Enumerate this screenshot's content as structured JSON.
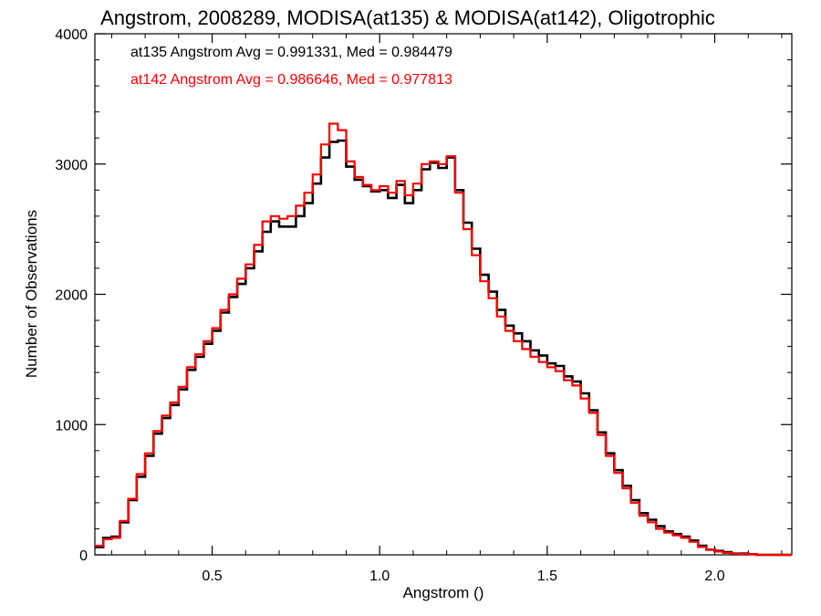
{
  "chart_data": {
    "type": "line",
    "title": "Angstrom, 2008289, MODISA(at135) & MODISA(at142), Oligotrophic",
    "xlabel": "Angstrom ()",
    "ylabel": "Number of Observations",
    "xlim": [
      0.15,
      2.23
    ],
    "ylim": [
      0,
      4000
    ],
    "x_ticks": [
      {
        "value": 0.5,
        "label": "0.5"
      },
      {
        "value": 1.0,
        "label": "1.0"
      },
      {
        "value": 1.5,
        "label": "1.5"
      },
      {
        "value": 2.0,
        "label": "2.0"
      }
    ],
    "y_ticks": [
      {
        "value": 0,
        "label": "0"
      },
      {
        "value": 1000,
        "label": "1000"
      },
      {
        "value": 2000,
        "label": "2000"
      },
      {
        "value": 3000,
        "label": "3000"
      },
      {
        "value": 4000,
        "label": "4000"
      }
    ],
    "legend": [
      {
        "text": "at135 Angstrom Avg = 0.991331, Med = 0.984479",
        "color": "#000000"
      },
      {
        "text": "at142 Angstrom Avg = 0.986646, Med = 0.977813",
        "color": "#ff0000"
      }
    ],
    "grid": false,
    "legend_position": "top-left",
    "step": true,
    "series": [
      {
        "color": "#000000",
        "x": [
          0.15,
          0.175,
          0.2,
          0.225,
          0.25,
          0.275,
          0.3,
          0.325,
          0.35,
          0.375,
          0.4,
          0.425,
          0.45,
          0.475,
          0.5,
          0.525,
          0.55,
          0.575,
          0.6,
          0.625,
          0.65,
          0.675,
          0.7,
          0.725,
          0.75,
          0.775,
          0.8,
          0.825,
          0.85,
          0.875,
          0.9,
          0.925,
          0.95,
          0.975,
          1.0,
          1.025,
          1.05,
          1.075,
          1.1,
          1.125,
          1.15,
          1.175,
          1.2,
          1.225,
          1.25,
          1.275,
          1.3,
          1.325,
          1.35,
          1.375,
          1.4,
          1.425,
          1.45,
          1.475,
          1.5,
          1.525,
          1.55,
          1.575,
          1.6,
          1.625,
          1.65,
          1.675,
          1.7,
          1.725,
          1.75,
          1.775,
          1.8,
          1.825,
          1.85,
          1.875,
          1.9,
          1.925,
          1.95,
          1.975,
          2.0,
          2.025,
          2.05,
          2.075,
          2.1,
          2.125,
          2.15,
          2.175,
          2.2,
          2.23
        ],
        "y": [
          60,
          130,
          140,
          250,
          420,
          600,
          760,
          930,
          1050,
          1150,
          1270,
          1420,
          1520,
          1620,
          1720,
          1860,
          1980,
          2080,
          2200,
          2330,
          2480,
          2560,
          2520,
          2520,
          2600,
          2700,
          2850,
          3050,
          3170,
          3180,
          2980,
          2880,
          2830,
          2790,
          2800,
          2740,
          2840,
          2700,
          2800,
          2960,
          3010,
          2970,
          3050,
          2800,
          2550,
          2350,
          2150,
          2020,
          1880,
          1760,
          1700,
          1640,
          1570,
          1530,
          1470,
          1450,
          1370,
          1330,
          1240,
          1110,
          940,
          780,
          650,
          530,
          420,
          320,
          270,
          220,
          180,
          160,
          140,
          110,
          70,
          40,
          30,
          20,
          10,
          10,
          5,
          0,
          0,
          0,
          0,
          0
        ]
      },
      {
        "color": "#ff0000",
        "x": [
          0.15,
          0.175,
          0.2,
          0.225,
          0.25,
          0.275,
          0.3,
          0.325,
          0.35,
          0.375,
          0.4,
          0.425,
          0.45,
          0.475,
          0.5,
          0.525,
          0.55,
          0.575,
          0.6,
          0.625,
          0.65,
          0.675,
          0.7,
          0.725,
          0.75,
          0.775,
          0.8,
          0.825,
          0.85,
          0.875,
          0.9,
          0.925,
          0.95,
          0.975,
          1.0,
          1.025,
          1.05,
          1.075,
          1.1,
          1.125,
          1.15,
          1.175,
          1.2,
          1.225,
          1.25,
          1.275,
          1.3,
          1.325,
          1.35,
          1.375,
          1.4,
          1.425,
          1.45,
          1.475,
          1.5,
          1.525,
          1.55,
          1.575,
          1.6,
          1.625,
          1.65,
          1.675,
          1.7,
          1.725,
          1.75,
          1.775,
          1.8,
          1.825,
          1.85,
          1.875,
          1.9,
          1.925,
          1.95,
          1.975,
          2.0,
          2.025,
          2.05,
          2.075,
          2.1,
          2.125,
          2.15,
          2.175,
          2.2,
          2.23
        ],
        "y": [
          70,
          120,
          130,
          260,
          430,
          620,
          780,
          950,
          1070,
          1170,
          1290,
          1440,
          1540,
          1640,
          1740,
          1880,
          2000,
          2120,
          2230,
          2380,
          2560,
          2600,
          2580,
          2600,
          2680,
          2780,
          2920,
          3150,
          3310,
          3260,
          3020,
          2900,
          2840,
          2800,
          2830,
          2780,
          2870,
          2760,
          2850,
          3000,
          3020,
          3000,
          3060,
          2780,
          2500,
          2300,
          2100,
          1970,
          1830,
          1720,
          1640,
          1580,
          1520,
          1480,
          1440,
          1410,
          1340,
          1300,
          1200,
          1090,
          920,
          760,
          630,
          510,
          400,
          300,
          250,
          200,
          170,
          150,
          130,
          100,
          60,
          40,
          25,
          15,
          10,
          8,
          4,
          0,
          0,
          0,
          0,
          0
        ]
      }
    ]
  }
}
